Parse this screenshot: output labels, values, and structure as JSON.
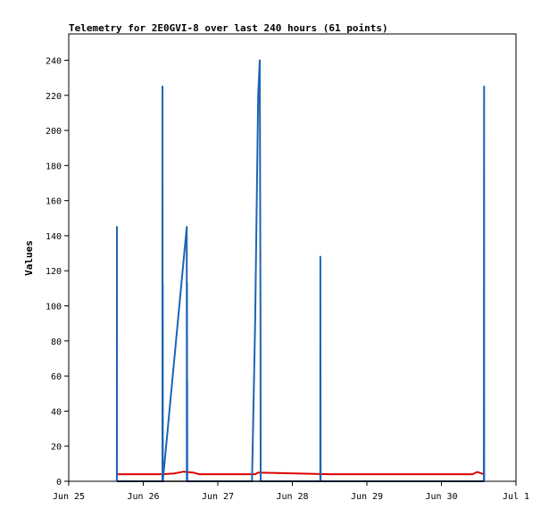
{
  "chart_data": {
    "type": "line",
    "title": "Telemetry for 2E0GVI-8 over last 240 hours (61 points)",
    "ylabel": "Values",
    "xlabel": "",
    "xlim": [
      "2023-06-25T00:00",
      "2023-07-01T00:00"
    ],
    "ylim": [
      0,
      255
    ],
    "x_ticks": [
      "Jun 25",
      "Jun 26",
      "Jun 27",
      "Jun 28",
      "Jun 29",
      "Jun 30",
      "Jul 1"
    ],
    "y_ticks": [
      0,
      20,
      40,
      60,
      80,
      100,
      120,
      140,
      160,
      180,
      200,
      220,
      240
    ],
    "grid": false,
    "legend": "none",
    "series": [
      {
        "color": "#1f64b4",
        "x": [
          "2023-06-25T15:30",
          "2023-06-25T15:31",
          "2023-06-25T15:32",
          "2023-06-26T06:10",
          "2023-06-26T06:11",
          "2023-06-26T06:15",
          "2023-06-26T06:16",
          "2023-06-26T06:18",
          "2023-06-26T14:00",
          "2023-06-26T14:01",
          "2023-06-26T14:05",
          "2023-06-26T14:06",
          "2023-06-26T14:08",
          "2023-06-26T14:10",
          "2023-06-26T14:15",
          "2023-06-26T14:16",
          "2023-06-27T11:00",
          "2023-06-27T12:00",
          "2023-06-27T13:00",
          "2023-06-27T13:30",
          "2023-06-27T13:45",
          "2023-06-27T13:47",
          "2023-06-27T13:49",
          "2023-06-27T13:52",
          "2023-06-28T09:00",
          "2023-06-28T09:02",
          "2023-06-28T09:04",
          "2023-06-28T09:06",
          "2023-06-30T13:40",
          "2023-06-30T13:42",
          "2023-06-30T13:44",
          "2023-06-30T13:46"
        ],
        "y": [
          0,
          145,
          0,
          0,
          225,
          0,
          113,
          0,
          145,
          0,
          113,
          0,
          57,
          0,
          0,
          0,
          0,
          90,
          220,
          240,
          95,
          0,
          0,
          0,
          0,
          128,
          64,
          0,
          0,
          185,
          225,
          0
        ]
      },
      {
        "color": "#dd0000",
        "x": [
          "2023-06-25T15:30",
          "2023-06-26T06:00",
          "2023-06-26T10:00",
          "2023-06-26T13:00",
          "2023-06-26T16:00",
          "2023-06-26T18:00",
          "2023-06-27T12:00",
          "2023-06-27T13:00",
          "2023-06-28T12:00",
          "2023-06-30T10:00",
          "2023-06-30T11:30",
          "2023-06-30T13:40"
        ],
        "y": [
          4,
          4,
          4.5,
          5.5,
          5,
          4,
          4,
          5,
          4,
          4,
          5.3,
          4
        ]
      },
      {
        "color": "#000000",
        "x": [
          "2023-06-25T15:30",
          "2023-06-30T13:46"
        ],
        "y": [
          0,
          0
        ]
      }
    ]
  }
}
